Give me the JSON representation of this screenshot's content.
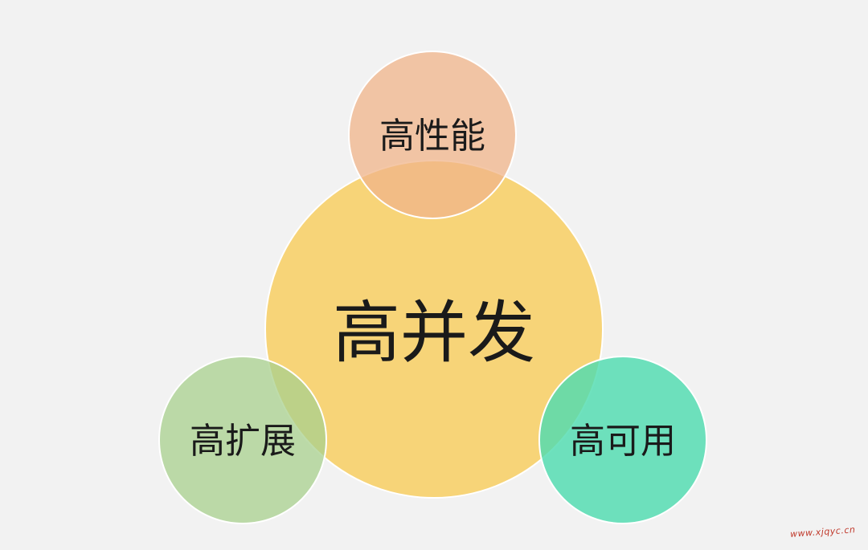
{
  "diagram": {
    "center": {
      "label": "高并发",
      "color": "#f7d06a"
    },
    "satellites": [
      {
        "id": "top",
        "label": "高性能",
        "color": "#f0b48a"
      },
      {
        "id": "left",
        "label": "高扩展",
        "color": "#a8d08d"
      },
      {
        "id": "right",
        "label": "高可用",
        "color": "#4fdcb0"
      }
    ]
  },
  "watermark": "www.xjqyc.cn"
}
